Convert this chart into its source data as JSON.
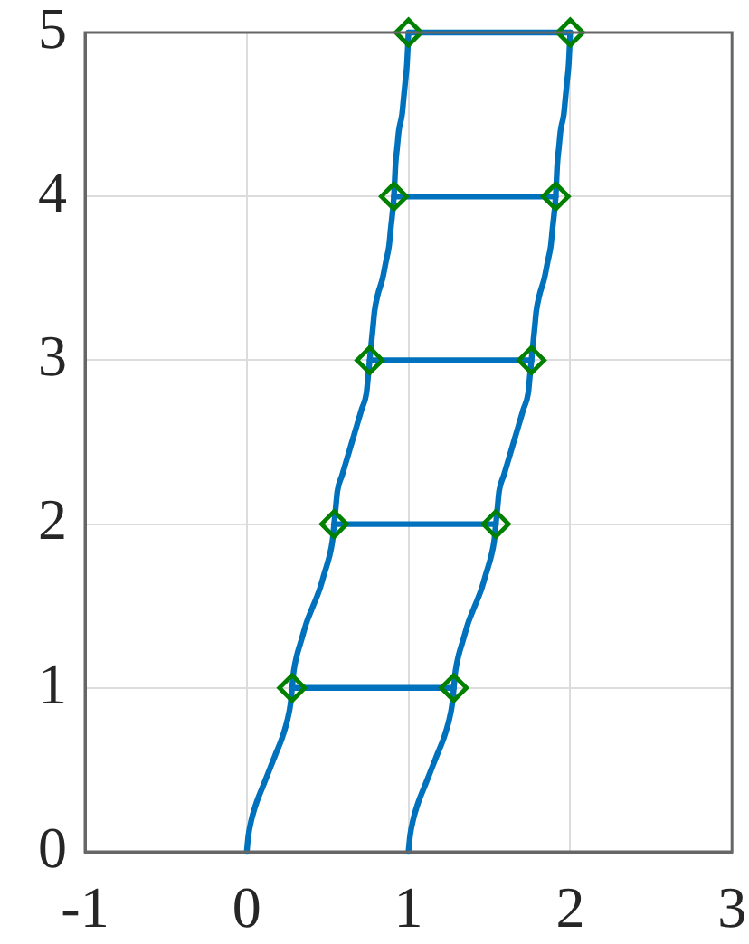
{
  "chart_data": {
    "type": "line",
    "xlim": [
      -1,
      3
    ],
    "ylim": [
      0,
      5
    ],
    "xticks": [
      -1,
      0,
      1,
      2,
      3
    ],
    "yticks": [
      0,
      1,
      2,
      3,
      4,
      5
    ],
    "grid": true,
    "legend": false,
    "line_style": "solid",
    "series": [
      {
        "color": "#0072bd",
        "marker": "none",
        "x": [
          0,
          0.01,
          0.03,
          0.06,
          0.1,
          0.14,
          0.18,
          0.22,
          0.25,
          0.27,
          0.28,
          0.29,
          0.31,
          0.34,
          0.37,
          0.41,
          0.45,
          0.48,
          0.51,
          0.53,
          0.54,
          0.55,
          0.56,
          0.59,
          0.62,
          0.65,
          0.68,
          0.71,
          0.74,
          0.75,
          0.76,
          0.78,
          0.79,
          0.81,
          0.84,
          0.86,
          0.88,
          0.89,
          0.91,
          0.92,
          0.93,
          0.94,
          0.96,
          0.97,
          0.98,
          0.99,
          1.0
        ],
        "values": [
          0,
          0.1,
          0.2,
          0.3,
          0.4,
          0.5,
          0.6,
          0.7,
          0.8,
          0.9,
          1,
          1.1,
          1.2,
          1.3,
          1.4,
          1.5,
          1.6,
          1.7,
          1.8,
          1.9,
          2,
          2.1,
          2.2,
          2.3,
          2.4,
          2.5,
          2.6,
          2.7,
          2.8,
          2.9,
          3,
          3.2,
          3.3,
          3.4,
          3.5,
          3.6,
          3.7,
          3.8,
          4,
          4.2,
          4.3,
          4.4,
          4.5,
          4.6,
          4.7,
          4.8,
          5
        ]
      },
      {
        "color": "#0072bd",
        "marker": "none",
        "x": [
          1,
          1.01,
          1.03,
          1.06,
          1.1,
          1.14,
          1.18,
          1.22,
          1.25,
          1.27,
          1.28,
          1.29,
          1.31,
          1.34,
          1.37,
          1.41,
          1.45,
          1.48,
          1.51,
          1.53,
          1.54,
          1.55,
          1.56,
          1.59,
          1.62,
          1.65,
          1.68,
          1.71,
          1.74,
          1.75,
          1.76,
          1.78,
          1.79,
          1.81,
          1.84,
          1.86,
          1.88,
          1.89,
          1.91,
          1.92,
          1.93,
          1.94,
          1.96,
          1.97,
          1.98,
          1.99,
          2.0
        ],
        "values": [
          0,
          0.1,
          0.2,
          0.3,
          0.4,
          0.5,
          0.6,
          0.7,
          0.8,
          0.9,
          1,
          1.1,
          1.2,
          1.3,
          1.4,
          1.5,
          1.6,
          1.7,
          1.8,
          1.9,
          2,
          2.1,
          2.2,
          2.3,
          2.4,
          2.5,
          2.6,
          2.7,
          2.8,
          2.9,
          3,
          3.2,
          3.3,
          3.4,
          3.5,
          3.6,
          3.7,
          3.8,
          4,
          4.2,
          4.3,
          4.4,
          4.5,
          4.6,
          4.7,
          4.8,
          5
        ]
      },
      {
        "color": "#0072bd",
        "marker": "none",
        "x": [
          0.28,
          1.28
        ],
        "values": [
          1,
          1
        ]
      },
      {
        "color": "#0072bd",
        "marker": "none",
        "x": [
          0.54,
          1.54
        ],
        "values": [
          2,
          2
        ]
      },
      {
        "color": "#0072bd",
        "marker": "none",
        "x": [
          0.76,
          1.76
        ],
        "values": [
          3,
          3
        ]
      },
      {
        "color": "#0072bd",
        "marker": "none",
        "x": [
          0.91,
          1.91
        ],
        "values": [
          4,
          4
        ]
      },
      {
        "color": "#0072bd",
        "marker": "none",
        "x": [
          1.0,
          2.0
        ],
        "values": [
          5,
          5
        ]
      },
      {
        "type": "scatter",
        "color": "#008000",
        "marker": "diamond",
        "x": [
          0.28,
          1.28,
          0.54,
          1.54,
          0.76,
          1.76,
          0.91,
          1.91,
          1.0,
          2.0
        ],
        "values": [
          1,
          1,
          2,
          2,
          3,
          3,
          4,
          4,
          5,
          5
        ]
      }
    ]
  }
}
